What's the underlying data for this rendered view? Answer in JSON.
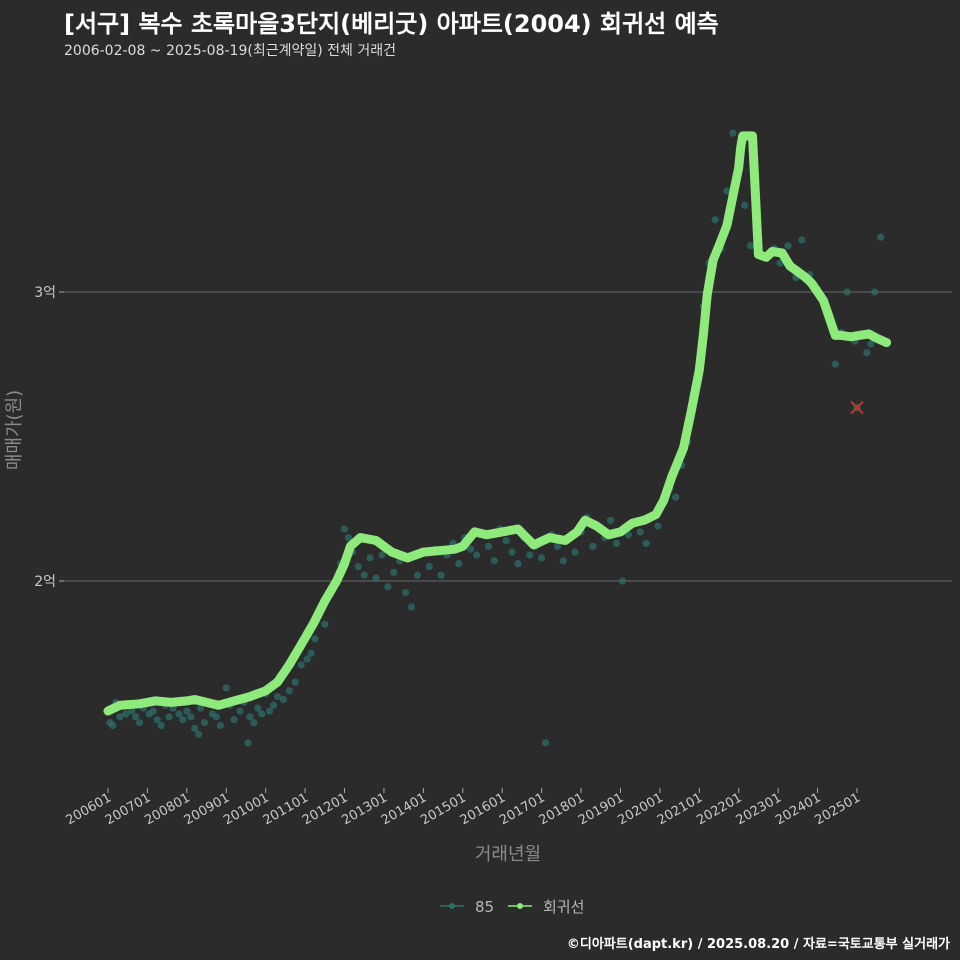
{
  "header": {
    "title": "[서구] 복수 초록마을3단지(베리굿) 아파트(2004) 회귀선 예측",
    "subtitle": "2006-02-08 ~ 2025-08-19(최근계약일) 전체 거래건"
  },
  "footer": {
    "credit": "©디아파트(dapt.kr) / 2025.08.20 / 자료=국토교통부 실거래가"
  },
  "colors": {
    "background": "#2b2b2c",
    "points": "#2e6e68",
    "regression": "#8eea7a",
    "outlier": "#c0392b",
    "grid": "#6a6a6a"
  },
  "chart_data": {
    "type": "line",
    "title": "[서구] 복수 초록마을3단지(베리굿) 아파트(2004) 회귀선 예측",
    "xlabel": "거래년월",
    "ylabel": "매매가(원)",
    "x_range": [
      2006.0,
      2025.83
    ],
    "ylim": [
      14100,
      36500
    ],
    "y_ticks": [
      {
        "value": 20000,
        "label": "2억"
      },
      {
        "value": 30000,
        "label": "3억"
      }
    ],
    "x_ticks": [
      {
        "value": 2006.0,
        "label": "200601"
      },
      {
        "value": 2007.0,
        "label": "200701"
      },
      {
        "value": 2008.0,
        "label": "200801"
      },
      {
        "value": 2009.0,
        "label": "200901"
      },
      {
        "value": 2010.0,
        "label": "201001"
      },
      {
        "value": 2011.0,
        "label": "201101"
      },
      {
        "value": 2012.0,
        "label": "201201"
      },
      {
        "value": 2013.0,
        "label": "201301"
      },
      {
        "value": 2014.0,
        "label": "201401"
      },
      {
        "value": 2015.0,
        "label": "201501"
      },
      {
        "value": 2016.0,
        "label": "201601"
      },
      {
        "value": 2017.0,
        "label": "201701"
      },
      {
        "value": 2018.0,
        "label": "201801"
      },
      {
        "value": 2019.0,
        "label": "201901"
      },
      {
        "value": 2020.0,
        "label": "202001"
      },
      {
        "value": 2021.0,
        "label": "202101"
      },
      {
        "value": 2022.0,
        "label": "202201"
      },
      {
        "value": 2023.0,
        "label": "202301"
      },
      {
        "value": 2024.0,
        "label": "202401"
      },
      {
        "value": 2025.0,
        "label": "202501"
      }
    ],
    "legend": [
      {
        "name": "85",
        "kind": "points"
      },
      {
        "name": "회귀선",
        "kind": "line"
      }
    ],
    "series": [
      {
        "name": "85",
        "kind": "scatter",
        "points": [
          [
            2006.05,
            15100
          ],
          [
            2006.12,
            15000
          ],
          [
            2006.2,
            15800
          ],
          [
            2006.3,
            15300
          ],
          [
            2006.45,
            15400
          ],
          [
            2006.6,
            15500
          ],
          [
            2006.7,
            15300
          ],
          [
            2006.8,
            15100
          ],
          [
            2006.9,
            15600
          ],
          [
            2007.05,
            15400
          ],
          [
            2007.15,
            15500
          ],
          [
            2007.25,
            15200
          ],
          [
            2007.35,
            15000
          ],
          [
            2007.45,
            15700
          ],
          [
            2007.55,
            15300
          ],
          [
            2007.65,
            15600
          ],
          [
            2007.8,
            15400
          ],
          [
            2007.9,
            15200
          ],
          [
            2008.0,
            15500
          ],
          [
            2008.1,
            15300
          ],
          [
            2008.2,
            14900
          ],
          [
            2008.3,
            14700
          ],
          [
            2008.35,
            15600
          ],
          [
            2008.45,
            15100
          ],
          [
            2008.55,
            15800
          ],
          [
            2008.65,
            15400
          ],
          [
            2008.75,
            15300
          ],
          [
            2008.85,
            15000
          ],
          [
            2009.0,
            16300
          ],
          [
            2009.1,
            15700
          ],
          [
            2009.2,
            15200
          ],
          [
            2009.35,
            15500
          ],
          [
            2009.45,
            15800
          ],
          [
            2009.55,
            14400
          ],
          [
            2009.6,
            15300
          ],
          [
            2009.7,
            15100
          ],
          [
            2009.8,
            15600
          ],
          [
            2009.9,
            15400
          ],
          [
            2010.0,
            16100
          ],
          [
            2010.1,
            15500
          ],
          [
            2010.2,
            15700
          ],
          [
            2010.3,
            16000
          ],
          [
            2010.45,
            15900
          ],
          [
            2010.6,
            16200
          ],
          [
            2010.75,
            16500
          ],
          [
            2010.9,
            17100
          ],
          [
            2011.05,
            17300
          ],
          [
            2011.15,
            17500
          ],
          [
            2011.25,
            18000
          ],
          [
            2011.35,
            19000
          ],
          [
            2011.5,
            18500
          ],
          [
            2011.6,
            19500
          ],
          [
            2011.75,
            19900
          ],
          [
            2011.9,
            20600
          ],
          [
            2012.0,
            21800
          ],
          [
            2012.1,
            21500
          ],
          [
            2012.2,
            21000
          ],
          [
            2012.35,
            20500
          ],
          [
            2012.5,
            20200
          ],
          [
            2012.65,
            20800
          ],
          [
            2012.8,
            20100
          ],
          [
            2012.95,
            20900
          ],
          [
            2013.1,
            19800
          ],
          [
            2013.25,
            20300
          ],
          [
            2013.4,
            20700
          ],
          [
            2013.55,
            19600
          ],
          [
            2013.7,
            19100
          ],
          [
            2013.85,
            20200
          ],
          [
            2014.0,
            21000
          ],
          [
            2014.15,
            20500
          ],
          [
            2014.3,
            21100
          ],
          [
            2014.45,
            20200
          ],
          [
            2014.6,
            20900
          ],
          [
            2014.75,
            21300
          ],
          [
            2014.9,
            20600
          ],
          [
            2015.05,
            21500
          ],
          [
            2015.2,
            21100
          ],
          [
            2015.35,
            20900
          ],
          [
            2015.5,
            21600
          ],
          [
            2015.65,
            21200
          ],
          [
            2015.8,
            20700
          ],
          [
            2015.95,
            21800
          ],
          [
            2016.1,
            21400
          ],
          [
            2016.25,
            21000
          ],
          [
            2016.4,
            20600
          ],
          [
            2016.55,
            21500
          ],
          [
            2016.7,
            20900
          ],
          [
            2016.85,
            21200
          ],
          [
            2017.0,
            20800
          ],
          [
            2017.1,
            14400
          ],
          [
            2017.25,
            21600
          ],
          [
            2017.4,
            21200
          ],
          [
            2017.55,
            20700
          ],
          [
            2017.7,
            21500
          ],
          [
            2017.85,
            21000
          ],
          [
            2018.0,
            21700
          ],
          [
            2018.15,
            22200
          ],
          [
            2018.3,
            21200
          ],
          [
            2018.45,
            21800
          ],
          [
            2018.6,
            21500
          ],
          [
            2018.75,
            22100
          ],
          [
            2018.9,
            21300
          ],
          [
            2019.05,
            20000
          ],
          [
            2019.2,
            21600
          ],
          [
            2019.35,
            22000
          ],
          [
            2019.5,
            21700
          ],
          [
            2019.65,
            21300
          ],
          [
            2019.8,
            22200
          ],
          [
            2019.95,
            21900
          ],
          [
            2020.1,
            22700
          ],
          [
            2020.25,
            23200
          ],
          [
            2020.4,
            22900
          ],
          [
            2020.55,
            24000
          ],
          [
            2020.7,
            24800
          ],
          [
            2020.85,
            26500
          ],
          [
            2021.0,
            27500
          ],
          [
            2021.1,
            29500
          ],
          [
            2021.25,
            31000
          ],
          [
            2021.4,
            32500
          ],
          [
            2021.55,
            31500
          ],
          [
            2021.7,
            33500
          ],
          [
            2021.85,
            35500
          ],
          [
            2022.0,
            34500
          ],
          [
            2022.15,
            33000
          ],
          [
            2022.3,
            31600
          ],
          [
            2022.5,
            31400
          ],
          [
            2022.7,
            31200
          ],
          [
            2022.9,
            31500
          ],
          [
            2023.05,
            31000
          ],
          [
            2023.25,
            31600
          ],
          [
            2023.45,
            30500
          ],
          [
            2023.6,
            31800
          ],
          [
            2023.8,
            30600
          ],
          [
            2024.0,
            30100
          ],
          [
            2024.15,
            29700
          ],
          [
            2024.3,
            29000
          ],
          [
            2024.45,
            27500
          ],
          [
            2024.6,
            28600
          ],
          [
            2024.75,
            30000
          ],
          [
            2024.95,
            28300
          ],
          [
            2025.1,
            28500
          ],
          [
            2025.25,
            27900
          ],
          [
            2025.35,
            28200
          ],
          [
            2025.45,
            30000
          ],
          [
            2025.6,
            31900
          ]
        ]
      },
      {
        "name": "회귀선",
        "kind": "line",
        "points": [
          [
            2006.0,
            15500
          ],
          [
            2006.3,
            15700
          ],
          [
            2006.8,
            15750
          ],
          [
            2007.2,
            15850
          ],
          [
            2007.6,
            15800
          ],
          [
            2008.0,
            15850
          ],
          [
            2008.2,
            15900
          ],
          [
            2008.5,
            15800
          ],
          [
            2008.8,
            15700
          ],
          [
            2009.2,
            15850
          ],
          [
            2009.6,
            16000
          ],
          [
            2010.0,
            16200
          ],
          [
            2010.3,
            16500
          ],
          [
            2010.6,
            17100
          ],
          [
            2010.9,
            17800
          ],
          [
            2011.2,
            18500
          ],
          [
            2011.5,
            19300
          ],
          [
            2011.8,
            20000
          ],
          [
            2012.0,
            20600
          ],
          [
            2012.15,
            21200
          ],
          [
            2012.4,
            21500
          ],
          [
            2012.8,
            21400
          ],
          [
            2013.2,
            21000
          ],
          [
            2013.6,
            20800
          ],
          [
            2014.0,
            21000
          ],
          [
            2014.4,
            21050
          ],
          [
            2014.8,
            21100
          ],
          [
            2015.0,
            21200
          ],
          [
            2015.3,
            21700
          ],
          [
            2015.6,
            21600
          ],
          [
            2016.0,
            21700
          ],
          [
            2016.4,
            21800
          ],
          [
            2016.8,
            21250
          ],
          [
            2017.2,
            21500
          ],
          [
            2017.6,
            21400
          ],
          [
            2017.9,
            21700
          ],
          [
            2018.1,
            22100
          ],
          [
            2018.4,
            21900
          ],
          [
            2018.7,
            21600
          ],
          [
            2019.0,
            21700
          ],
          [
            2019.3,
            22000
          ],
          [
            2019.6,
            22100
          ],
          [
            2019.9,
            22300
          ],
          [
            2020.1,
            22800
          ],
          [
            2020.3,
            23600
          ],
          [
            2020.6,
            24600
          ],
          [
            2020.8,
            25900
          ],
          [
            2021.0,
            27300
          ],
          [
            2021.1,
            28500
          ],
          [
            2021.2,
            29900
          ],
          [
            2021.35,
            31100
          ],
          [
            2021.5,
            31600
          ],
          [
            2021.7,
            32300
          ],
          [
            2021.85,
            33300
          ],
          [
            2022.0,
            34300
          ],
          [
            2022.05,
            35000
          ],
          [
            2022.1,
            35400
          ],
          [
            2022.35,
            35400
          ],
          [
            2022.5,
            31300
          ],
          [
            2022.7,
            31200
          ],
          [
            2022.85,
            31400
          ],
          [
            2023.1,
            31350
          ],
          [
            2023.3,
            30900
          ],
          [
            2023.5,
            30700
          ],
          [
            2023.7,
            30500
          ],
          [
            2023.85,
            30300
          ],
          [
            2024.0,
            30000
          ],
          [
            2024.15,
            29700
          ],
          [
            2024.3,
            29100
          ],
          [
            2024.45,
            28500
          ],
          [
            2024.6,
            28500
          ],
          [
            2024.85,
            28450
          ],
          [
            2025.05,
            28500
          ],
          [
            2025.3,
            28550
          ],
          [
            2025.5,
            28400
          ],
          [
            2025.75,
            28250
          ]
        ]
      }
    ],
    "outliers": [
      [
        2025.0,
        26000
      ]
    ]
  }
}
